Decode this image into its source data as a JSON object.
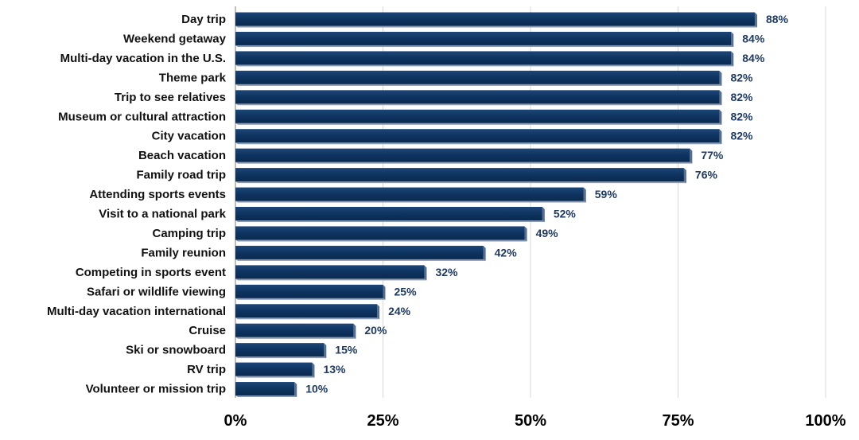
{
  "chart_data": {
    "type": "bar",
    "orientation": "horizontal",
    "categories": [
      "Day trip",
      "Weekend getaway",
      "Multi-day vacation in the U.S.",
      "Theme park",
      "Trip to see relatives",
      "Museum or cultural attraction",
      "City vacation",
      "Beach vacation",
      "Family road trip",
      "Attending sports events",
      "Visit to a national park",
      "Camping trip",
      "Family reunion",
      "Competing in sports event",
      "Safari or wildlife viewing",
      "Multi-day vacation international",
      "Cruise",
      "Ski or snowboard",
      "RV trip",
      "Volunteer or mission trip"
    ],
    "values": [
      88,
      84,
      84,
      82,
      82,
      82,
      82,
      77,
      76,
      59,
      52,
      49,
      42,
      32,
      25,
      24,
      20,
      15,
      13,
      10
    ],
    "data_labels": [
      "88%",
      "84%",
      "84%",
      "82%",
      "82%",
      "82%",
      "82%",
      "77%",
      "76%",
      "59%",
      "52%",
      "49%",
      "42%",
      "32%",
      "25%",
      "24%",
      "20%",
      "15%",
      "13%",
      "10%"
    ],
    "xlim": [
      0,
      100
    ],
    "x_ticks": [
      0,
      25,
      50,
      75,
      100
    ],
    "x_tick_labels": [
      "0%",
      "25%",
      "50%",
      "75%",
      "100%"
    ],
    "title": "",
    "xlabel": "",
    "ylabel": "",
    "grid": "vertical",
    "legend": "none",
    "colors": {
      "bar": "#0e3460",
      "bar_shadow": "#5b6f8c",
      "data_label": "#1f3a63",
      "category_label": "#111111",
      "tick_label": "#000000",
      "grid": "#d9d9d9",
      "axis": "#7f7f7f"
    }
  }
}
